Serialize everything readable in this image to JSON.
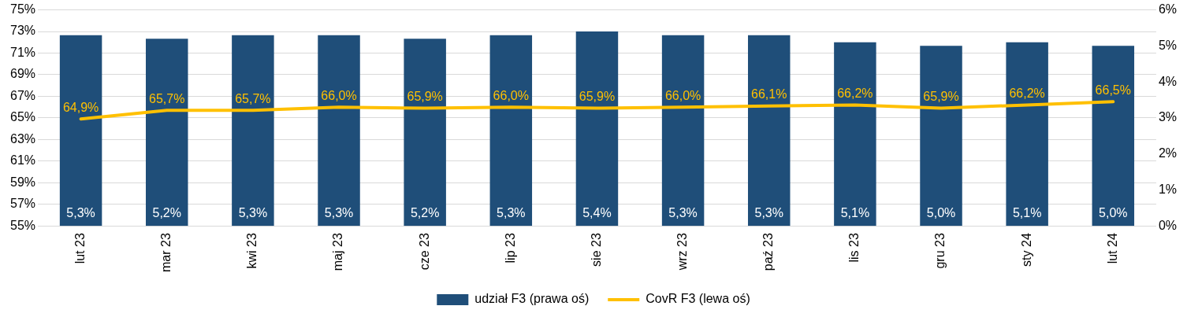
{
  "chart_data": {
    "type": "bar",
    "categories": [
      "lut 23",
      "mar 23",
      "kwi 23",
      "maj 23",
      "cze 23",
      "lip 23",
      "sie 23",
      "wrz 23",
      "paź 23",
      "lis 23",
      "gru 23",
      "sty 24",
      "lut 24"
    ],
    "series": [
      {
        "name": "udział F3 (prawa oś)",
        "axis": "y2",
        "color": "#1f4e79",
        "values": [
          5.3,
          5.2,
          5.3,
          5.3,
          5.2,
          5.3,
          5.4,
          5.3,
          5.3,
          5.1,
          5.0,
          5.1,
          5.0
        ],
        "value_labels": [
          "5,3%",
          "5,2%",
          "5,3%",
          "5,3%",
          "5,2%",
          "5,3%",
          "5,4%",
          "5,3%",
          "5,3%",
          "5,1%",
          "5,0%",
          "5,1%",
          "5,0%"
        ]
      },
      {
        "name": "CovR F3 (lewa oś)",
        "type": "line",
        "axis": "y",
        "color": "#ffc000",
        "values": [
          64.9,
          65.7,
          65.7,
          66.0,
          65.9,
          66.0,
          65.9,
          66.0,
          66.1,
          66.2,
          65.9,
          66.2,
          66.5
        ],
        "value_labels": [
          "64,9%",
          "65,7%",
          "65,7%",
          "66,0%",
          "65,9%",
          "66,0%",
          "65,9%",
          "66,0%",
          "66,1%",
          "66,2%",
          "65,9%",
          "66,2%",
          "66,5%"
        ]
      }
    ],
    "ylim": [
      55,
      75
    ],
    "yticks": [
      {
        "value": 55,
        "label": "55%"
      },
      {
        "value": 57,
        "label": "57%"
      },
      {
        "value": 59,
        "label": "59%"
      },
      {
        "value": 61,
        "label": "61%"
      },
      {
        "value": 63,
        "label": "63%"
      },
      {
        "value": 65,
        "label": "65%"
      },
      {
        "value": 67,
        "label": "67%"
      },
      {
        "value": 69,
        "label": "69%"
      },
      {
        "value": 71,
        "label": "71%"
      },
      {
        "value": 73,
        "label": "73%"
      },
      {
        "value": 75,
        "label": "75%"
      }
    ],
    "y2lim": [
      0,
      6
    ],
    "y2ticks": [
      {
        "value": 0,
        "label": "0%"
      },
      {
        "value": 1,
        "label": "1%"
      },
      {
        "value": 2,
        "label": "2%"
      },
      {
        "value": 3,
        "label": "3%"
      },
      {
        "value": 4,
        "label": "4%"
      },
      {
        "value": 5,
        "label": "5%"
      },
      {
        "value": 6,
        "label": "6%"
      }
    ],
    "grid": "y",
    "legend": "bottom",
    "marker": "none",
    "line_style": "solid"
  }
}
